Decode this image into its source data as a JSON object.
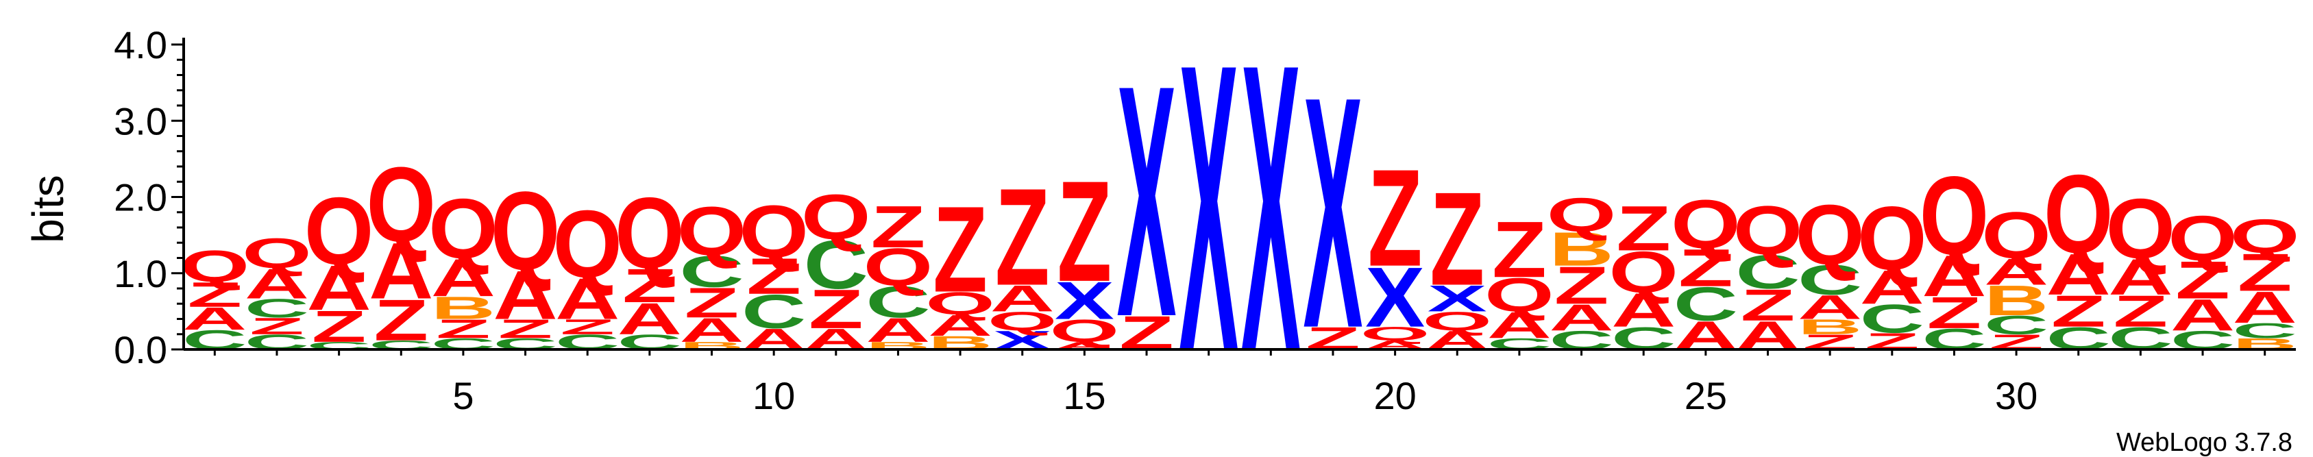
{
  "chart_data": {
    "type": "sequence-logo",
    "ylabel": "bits",
    "ylim": [
      0,
      4.0
    ],
    "y_ticks": [
      "0.0",
      "1.0",
      "2.0",
      "3.0",
      "4.0"
    ],
    "x_ticks": [
      5,
      10,
      15,
      20,
      25,
      30
    ],
    "credit": "WebLogo 3.7.8",
    "colors": {
      "Q": "#ff0000",
      "Z": "#ff0000",
      "A": "#ff0000",
      "X": "#0000ff",
      "C": "#228b22",
      "B": "#ff8c00"
    },
    "positions": [
      {
        "pos": 1,
        "stack": [
          {
            "letter": "C",
            "h": 0.26
          },
          {
            "letter": "A",
            "h": 0.3
          },
          {
            "letter": "Z",
            "h": 0.33
          },
          {
            "letter": "Q",
            "h": 0.42
          }
        ]
      },
      {
        "pos": 2,
        "stack": [
          {
            "letter": "C",
            "h": 0.2
          },
          {
            "letter": "Z",
            "h": 0.22
          },
          {
            "letter": "C",
            "h": 0.25
          },
          {
            "letter": "A",
            "h": 0.4
          },
          {
            "letter": "Q",
            "h": 0.4
          }
        ]
      },
      {
        "pos": 3,
        "stack": [
          {
            "letter": "C",
            "h": 0.1
          },
          {
            "letter": "Z",
            "h": 0.42
          },
          {
            "letter": "A",
            "h": 0.6
          },
          {
            "letter": "Q",
            "h": 0.9
          }
        ]
      },
      {
        "pos": 4,
        "stack": [
          {
            "letter": "C",
            "h": 0.12
          },
          {
            "letter": "Z",
            "h": 0.55
          },
          {
            "letter": "A",
            "h": 0.75
          },
          {
            "letter": "Q",
            "h": 1.0
          }
        ]
      },
      {
        "pos": 5,
        "stack": [
          {
            "letter": "C",
            "h": 0.15
          },
          {
            "letter": "Z",
            "h": 0.25
          },
          {
            "letter": "B",
            "h": 0.3
          },
          {
            "letter": "A",
            "h": 0.5
          },
          {
            "letter": "Q",
            "h": 0.8
          }
        ]
      },
      {
        "pos": 6,
        "stack": [
          {
            "letter": "C",
            "h": 0.15
          },
          {
            "letter": "Z",
            "h": 0.25
          },
          {
            "letter": "A",
            "h": 0.65
          },
          {
            "letter": "Q",
            "h": 1.05
          }
        ]
      },
      {
        "pos": 7,
        "stack": [
          {
            "letter": "C",
            "h": 0.2
          },
          {
            "letter": "Z",
            "h": 0.2
          },
          {
            "letter": "A",
            "h": 0.55
          },
          {
            "letter": "Q",
            "h": 0.9
          }
        ]
      },
      {
        "pos": 8,
        "stack": [
          {
            "letter": "C",
            "h": 0.2
          },
          {
            "letter": "A",
            "h": 0.42
          },
          {
            "letter": "Z",
            "h": 0.45
          },
          {
            "letter": "Q",
            "h": 0.95
          }
        ]
      },
      {
        "pos": 9,
        "stack": [
          {
            "letter": "B",
            "h": 0.1
          },
          {
            "letter": "A",
            "h": 0.32
          },
          {
            "letter": "Z",
            "h": 0.4
          },
          {
            "letter": "C",
            "h": 0.42
          },
          {
            "letter": "Q",
            "h": 0.65
          }
        ]
      },
      {
        "pos": 10,
        "stack": [
          {
            "letter": "A",
            "h": 0.28
          },
          {
            "letter": "C",
            "h": 0.45
          },
          {
            "letter": "Z",
            "h": 0.48
          },
          {
            "letter": "Q",
            "h": 0.7
          }
        ]
      },
      {
        "pos": 11,
        "stack": [
          {
            "letter": "A",
            "h": 0.28
          },
          {
            "letter": "Z",
            "h": 0.52
          },
          {
            "letter": "C",
            "h": 0.65
          },
          {
            "letter": "Q",
            "h": 0.6
          }
        ]
      },
      {
        "pos": 12,
        "stack": [
          {
            "letter": "B",
            "h": 0.1
          },
          {
            "letter": "A",
            "h": 0.32
          },
          {
            "letter": "C",
            "h": 0.42
          },
          {
            "letter": "Q",
            "h": 0.5
          },
          {
            "letter": "Z",
            "h": 0.56
          }
        ]
      },
      {
        "pos": 13,
        "stack": [
          {
            "letter": "B",
            "h": 0.18
          },
          {
            "letter": "A",
            "h": 0.28
          },
          {
            "letter": "Q",
            "h": 0.3
          },
          {
            "letter": "Z",
            "h": 1.15
          }
        ]
      },
      {
        "pos": 14,
        "stack": [
          {
            "letter": "X",
            "h": 0.25
          },
          {
            "letter": "Q",
            "h": 0.25
          },
          {
            "letter": "A",
            "h": 0.35
          },
          {
            "letter": "Z",
            "h": 1.3
          }
        ]
      },
      {
        "pos": 15,
        "stack": [
          {
            "letter": "A",
            "h": 0.1
          },
          {
            "letter": "Q",
            "h": 0.3
          },
          {
            "letter": "X",
            "h": 0.5
          },
          {
            "letter": "Z",
            "h": 1.35
          }
        ]
      },
      {
        "pos": 16,
        "stack": [
          {
            "letter": "Z",
            "h": 0.45
          },
          {
            "letter": "X",
            "h": 3.1
          }
        ]
      },
      {
        "pos": 17,
        "stack": [
          {
            "letter": "X",
            "h": 3.85
          }
        ]
      },
      {
        "pos": 18,
        "stack": [
          {
            "letter": "X",
            "h": 3.85
          }
        ]
      },
      {
        "pos": 19,
        "stack": [
          {
            "letter": "Z",
            "h": 0.3
          },
          {
            "letter": "X",
            "h": 3.1
          }
        ]
      },
      {
        "pos": 20,
        "stack": [
          {
            "letter": "A",
            "h": 0.12
          },
          {
            "letter": "Q",
            "h": 0.18
          },
          {
            "letter": "X",
            "h": 0.8
          },
          {
            "letter": "Z",
            "h": 1.3
          }
        ]
      },
      {
        "pos": 21,
        "stack": [
          {
            "letter": "A",
            "h": 0.25
          },
          {
            "letter": "Q",
            "h": 0.25
          },
          {
            "letter": "X",
            "h": 0.35
          },
          {
            "letter": "Z",
            "h": 1.25
          }
        ]
      },
      {
        "pos": 22,
        "stack": [
          {
            "letter": "C",
            "h": 0.15
          },
          {
            "letter": "A",
            "h": 0.35
          },
          {
            "letter": "Q",
            "h": 0.45
          },
          {
            "letter": "Z",
            "h": 0.75
          }
        ]
      },
      {
        "pos": 23,
        "stack": [
          {
            "letter": "C",
            "h": 0.25
          },
          {
            "letter": "A",
            "h": 0.35
          },
          {
            "letter": "Z",
            "h": 0.5
          },
          {
            "letter": "B",
            "h": 0.45
          },
          {
            "letter": "Q",
            "h": 0.45
          }
        ]
      },
      {
        "pos": 24,
        "stack": [
          {
            "letter": "C",
            "h": 0.3
          },
          {
            "letter": "A",
            "h": 0.45
          },
          {
            "letter": "Q",
            "h": 0.55
          },
          {
            "letter": "Z",
            "h": 0.6
          }
        ]
      },
      {
        "pos": 25,
        "stack": [
          {
            "letter": "A",
            "h": 0.38
          },
          {
            "letter": "C",
            "h": 0.45
          },
          {
            "letter": "Z",
            "h": 0.5
          },
          {
            "letter": "Q",
            "h": 0.65
          }
        ]
      },
      {
        "pos": 26,
        "stack": [
          {
            "letter": "A",
            "h": 0.38
          },
          {
            "letter": "Z",
            "h": 0.42
          },
          {
            "letter": "C",
            "h": 0.45
          },
          {
            "letter": "Q",
            "h": 0.65
          }
        ]
      },
      {
        "pos": 27,
        "stack": [
          {
            "letter": "Z",
            "h": 0.2
          },
          {
            "letter": "B",
            "h": 0.2
          },
          {
            "letter": "A",
            "h": 0.32
          },
          {
            "letter": "C",
            "h": 0.4
          },
          {
            "letter": "Q",
            "h": 0.8
          }
        ]
      },
      {
        "pos": 28,
        "stack": [
          {
            "letter": "Z",
            "h": 0.22
          },
          {
            "letter": "C",
            "h": 0.38
          },
          {
            "letter": "A",
            "h": 0.45
          },
          {
            "letter": "Q",
            "h": 0.85
          }
        ]
      },
      {
        "pos": 29,
        "stack": [
          {
            "letter": "C",
            "h": 0.28
          },
          {
            "letter": "Z",
            "h": 0.42
          },
          {
            "letter": "A",
            "h": 0.55
          },
          {
            "letter": "Q",
            "h": 1.05
          }
        ]
      },
      {
        "pos": 30,
        "stack": [
          {
            "letter": "Z",
            "h": 0.2
          },
          {
            "letter": "C",
            "h": 0.25
          },
          {
            "letter": "B",
            "h": 0.4
          },
          {
            "letter": "A",
            "h": 0.35
          },
          {
            "letter": "Q",
            "h": 0.62
          }
        ]
      },
      {
        "pos": 31,
        "stack": [
          {
            "letter": "C",
            "h": 0.3
          },
          {
            "letter": "Z",
            "h": 0.42
          },
          {
            "letter": "A",
            "h": 0.55
          },
          {
            "letter": "Q",
            "h": 1.05
          }
        ]
      },
      {
        "pos": 32,
        "stack": [
          {
            "letter": "C",
            "h": 0.3
          },
          {
            "letter": "Z",
            "h": 0.42
          },
          {
            "letter": "A",
            "h": 0.48
          },
          {
            "letter": "Q",
            "h": 0.8
          }
        ]
      },
      {
        "pos": 33,
        "stack": [
          {
            "letter": "C",
            "h": 0.25
          },
          {
            "letter": "A",
            "h": 0.42
          },
          {
            "letter": "Z",
            "h": 0.5
          },
          {
            "letter": "Q",
            "h": 0.6
          }
        ]
      },
      {
        "pos": 34,
        "stack": [
          {
            "letter": "B",
            "h": 0.15
          },
          {
            "letter": "C",
            "h": 0.2
          },
          {
            "letter": "A",
            "h": 0.42
          },
          {
            "letter": "Z",
            "h": 0.5
          },
          {
            "letter": "Q",
            "h": 0.45
          }
        ]
      }
    ]
  }
}
